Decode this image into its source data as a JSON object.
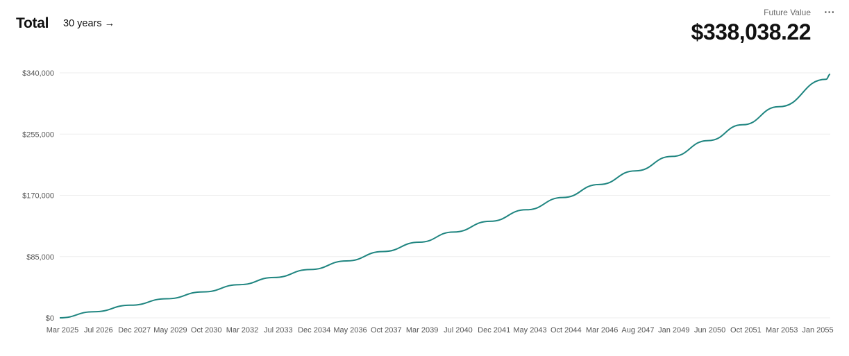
{
  "header": {
    "title": "Total",
    "range_label": "30 years →",
    "future_value_label": "Future Value",
    "future_value": "$338,038.22",
    "menu_label": "···"
  },
  "colors": {
    "line": "#1f8580",
    "grid": "#eeeeee",
    "tick_text": "#555555"
  },
  "chart_data": {
    "type": "line",
    "title": "",
    "xlabel": "",
    "ylabel": "",
    "ylim": [
      0,
      340000
    ],
    "yticks": [
      0,
      85000,
      170000,
      255000,
      340000
    ],
    "ytick_labels": [
      "$0",
      "$85,000",
      "$170,000",
      "$255,000",
      "$340,000"
    ],
    "xlim": [
      "2025-03",
      "2055-03"
    ],
    "xtick_labels": [
      "Mar 2025",
      "Jul 2026",
      "Dec 2027",
      "May 2029",
      "Oct 2030",
      "Mar 2032",
      "Jul 2033",
      "Dec 2034",
      "May 2036",
      "Oct 2037",
      "Mar 2039",
      "Jul 2040",
      "Dec 2041",
      "May 2043",
      "Oct 2044",
      "Mar 2046",
      "Aug 2047",
      "Jan 2049",
      "Jun 2050",
      "Oct 2051",
      "Mar 2053",
      "Jan 2055"
    ],
    "grid": true,
    "series": [
      {
        "x": [
          "2025-03",
          "2026-07",
          "2027-12",
          "2029-05",
          "2030-10",
          "2032-03",
          "2033-07",
          "2034-12",
          "2036-05",
          "2037-10",
          "2039-03",
          "2040-07",
          "2041-12",
          "2043-05",
          "2044-10",
          "2046-03",
          "2047-08",
          "2049-01",
          "2050-06",
          "2051-10",
          "2053-03",
          "2055-01",
          "2055-03"
        ],
        "values": [
          0,
          8500,
          17500,
          26500,
          36000,
          46000,
          56000,
          67000,
          79000,
          92000,
          105000,
          119000,
          134000,
          150000,
          167000,
          185000,
          204000,
          224000,
          246000,
          268000,
          293000,
          331000,
          338038.22
        ]
      }
    ]
  }
}
